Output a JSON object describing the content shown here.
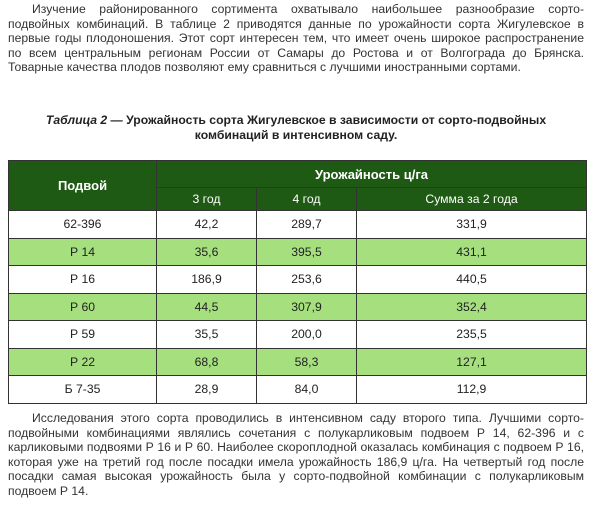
{
  "intro_paragraph": "Изучение районированного сортимента охватывало наибольшее разнообразие сорто-подвойных комбинаций. В таблице 2 приводятся данные по урожайности сорта Жигулевское в первые годы плодоношения. Этот сорт интересен тем, что имеет очень широкое распространение по всем центральным регионам России от Самары до Ростова и от Волгограда до Брянска. Товарные качества плодов позволяют ему сравниться с лучшими иностранными сортами.",
  "caption": {
    "lead": "Таблица 2",
    "rest": " — Урожайность сорта Жигулевское в зависимости от сорто-подвойных комбинаций в интенсивном саду."
  },
  "table": {
    "header_rootstock": "Подвой",
    "header_yield": "Урожайность ц/га",
    "sub_headers": [
      "3 год",
      "4 год",
      "Сумма за 2 года"
    ],
    "rows": [
      {
        "rootstock": "62-396",
        "y3": "42,2",
        "y4": "289,7",
        "sum": "331,9",
        "highlight": false
      },
      {
        "rootstock": "Р 14",
        "y3": "35,6",
        "y4": "395,5",
        "sum": "431,1",
        "highlight": true
      },
      {
        "rootstock": "Р 16",
        "y3": "186,9",
        "y4": "253,6",
        "sum": "440,5",
        "highlight": false
      },
      {
        "rootstock": "Р 60",
        "y3": "44,5",
        "y4": "307,9",
        "sum": "352,4",
        "highlight": true
      },
      {
        "rootstock": "Р 59",
        "y3": "35,5",
        "y4": "200,0",
        "sum": "235,5",
        "highlight": false
      },
      {
        "rootstock": "Р 22",
        "y3": "68,8",
        "y4": "58,3",
        "sum": "127,1",
        "highlight": true
      },
      {
        "rootstock": "Б 7-35",
        "y3": "28,9",
        "y4": "84,0",
        "sum": "112,9",
        "highlight": false
      }
    ]
  },
  "outro_paragraph": "Исследования этого сорта проводились в интенсивном саду второго типа. Лучшими сорто-подвойными комбинациями являлись сочетания с полукарликовым подвоем Р 14, 62-396 и с карликовыми подвоями Р 16 и Р 60. Наиболее скороплодной оказалась комбинация с подвоем Р 16, которая уже на третий год после посадки имела урожайность 186,9 ц/га. На четвертый год после посадки самая высокая урожайность была у сорто-подвойной комбинации с полукарликовым подвоем Р 14.",
  "colors": {
    "header_bg": "#1f5a14",
    "highlight_row": "#a6e07e",
    "text": "#333333"
  }
}
